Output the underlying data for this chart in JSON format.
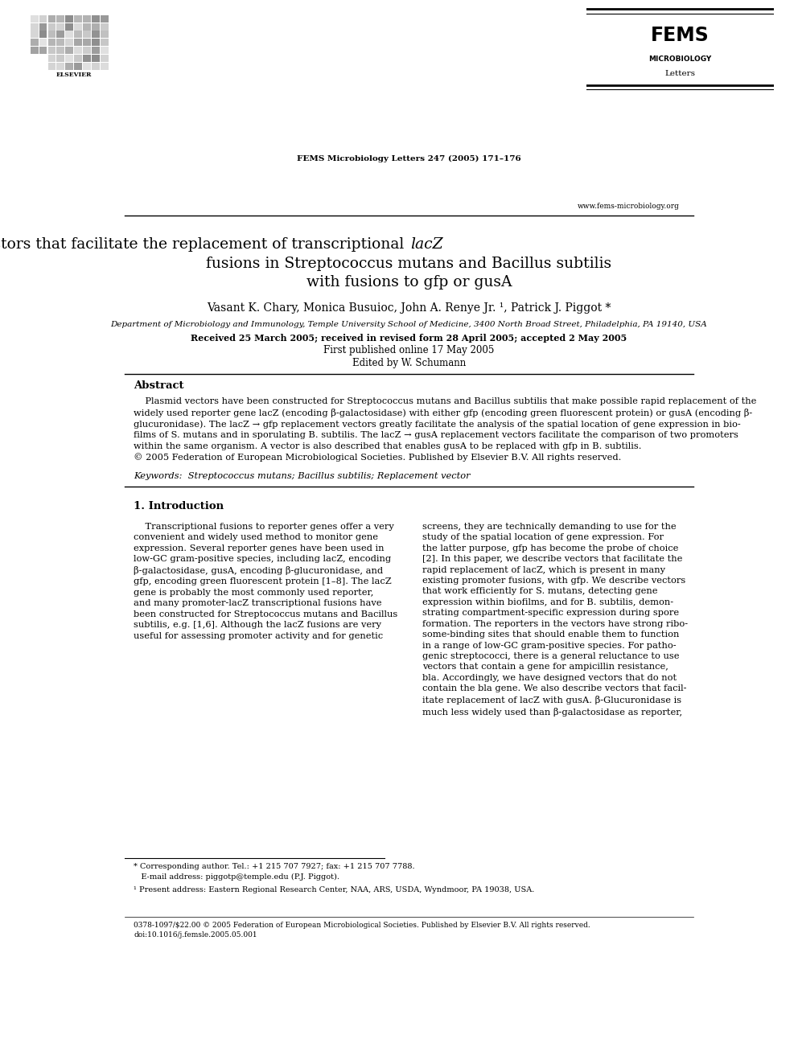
{
  "bg_color": "#ffffff",
  "page_width": 9.92,
  "page_height": 13.23,
  "header_journal": "FEMS Microbiology Letters 247 (2005) 171–176",
  "fems_title": "FEMS",
  "fems_sub1": "MICROBIOLOGY",
  "fems_sub2": "Letters",
  "fems_url": "www.fems-microbiology.org",
  "elsevier_text": "ELSEVIER",
  "authors": "Vasant K. Chary, Monica Busuioc, John A. Renye Jr. ¹, Patrick J. Piggot *",
  "affiliation": "Department of Microbiology and Immunology, Temple University School of Medicine, 3400 North Broad Street, Philadelphia, PA 19140, USA",
  "received": "Received 25 March 2005; received in revised form 28 April 2005; accepted 2 May 2005",
  "published": "First published online 17 May 2005",
  "edited": "Edited by W. Schumann",
  "abstract_heading": "Abstract",
  "keywords": "Keywords:  Streptococcus mutans; Bacillus subtilis; Replacement vector",
  "section1_heading": "1. Introduction",
  "footnote1": "* Corresponding author. Tel.: +1 215 707 7927; fax: +1 215 707 7788.",
  "footnote2": "   E-mail address: piggotp@temple.edu (P.J. Piggot).",
  "footnote3": "¹ Present address: Eastern Regional Research Center, NAA, ARS, USDA, Wyndmoor, PA 19038, USA.",
  "bottom_line1": "0378-1097/$22.00 © 2005 Federation of European Microbiological Societies. Published by Elsevier B.V. All rights reserved.",
  "bottom_line2": "doi:10.1016/j.femsle.2005.05.001"
}
